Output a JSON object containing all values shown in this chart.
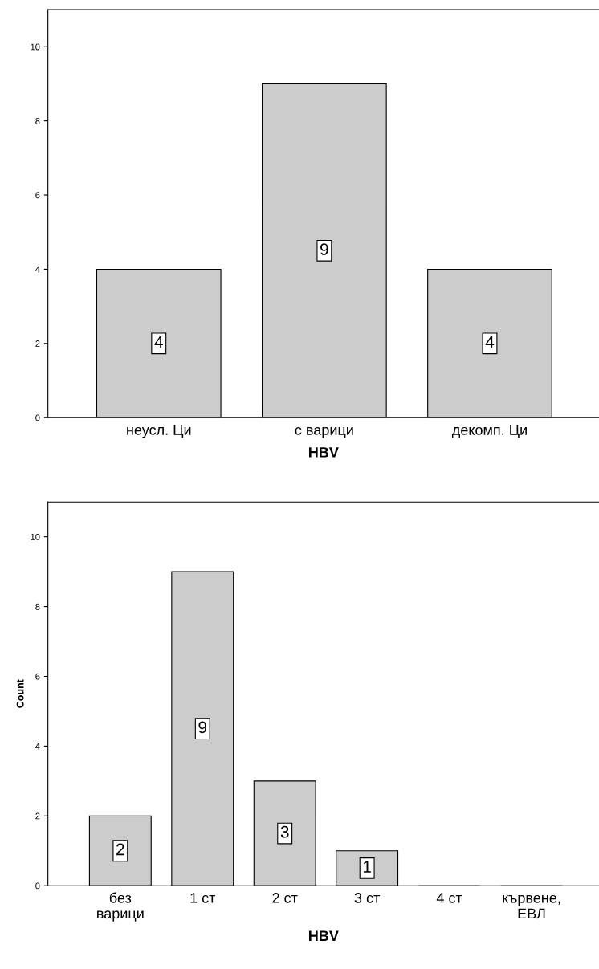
{
  "chart_data": [
    {
      "type": "bar",
      "xlabel": "HBV",
      "categories": [
        "неусл. Ци",
        "с варици",
        "декомп. Ци"
      ],
      "values": [
        4,
        9,
        4
      ],
      "color": "#cccccc",
      "ylim": [
        0,
        11
      ],
      "yticks": [
        0,
        2,
        4,
        6,
        8,
        10
      ],
      "data_labels": true,
      "grid": false,
      "legend": false
    },
    {
      "type": "bar",
      "xlabel": "HBV",
      "ylabel": "Count",
      "categories": [
        "без\nварици",
        "1 ст",
        "2 ст",
        "3 ст",
        "4 ст",
        "кървене,\nЕВЛ"
      ],
      "values": [
        2,
        9,
        3,
        1,
        0,
        0
      ],
      "value_labels": [
        "2",
        "9",
        "3",
        "1",
        null,
        null
      ],
      "color": "#cccccc",
      "ylim": [
        0,
        11
      ],
      "yticks": [
        0,
        2,
        4,
        6,
        8,
        10
      ],
      "grid": false,
      "legend": false
    }
  ]
}
